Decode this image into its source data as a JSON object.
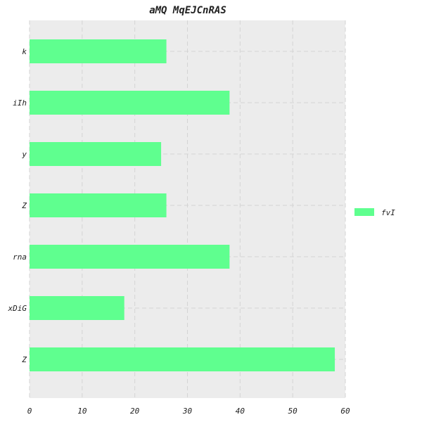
{
  "chart_data": {
    "type": "bar",
    "orientation": "horizontal",
    "title": "aMQ MqEJCnRAS",
    "xlabel": "",
    "ylabel": "",
    "categories": [
      "k",
      "iIh",
      "y",
      "Z",
      "rna",
      "xDiG",
      "Z"
    ],
    "series": [
      {
        "name": "fvI",
        "values": [
          26,
          38,
          25,
          26,
          38,
          18,
          58
        ],
        "color": "#5fff8f"
      }
    ],
    "xlim": [
      0,
      60
    ],
    "xticks": [
      0,
      10,
      20,
      30,
      40,
      50,
      60
    ],
    "grid": true,
    "legend_position": "right",
    "plot_background": "#ececec"
  }
}
